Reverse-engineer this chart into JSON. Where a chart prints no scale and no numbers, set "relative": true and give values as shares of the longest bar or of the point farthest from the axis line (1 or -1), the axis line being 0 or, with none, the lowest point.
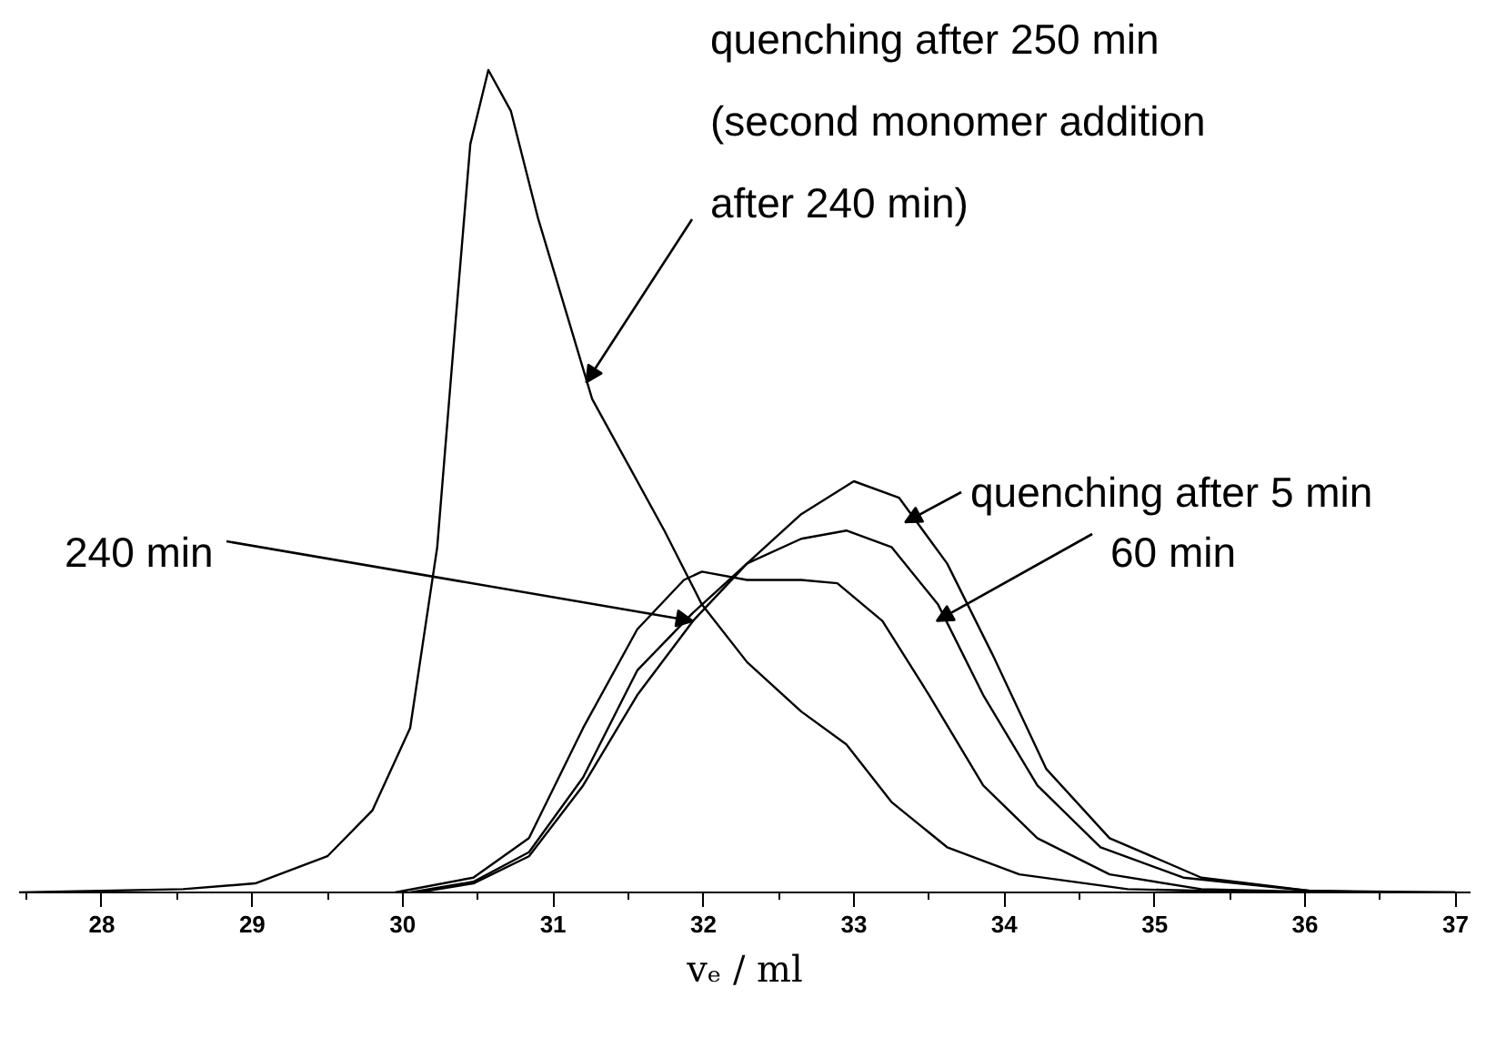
{
  "chart_data": {
    "type": "line",
    "relative": true,
    "xlabel": "vₑ / ml",
    "xlim": [
      27.45,
      37.1
    ],
    "xticks": [
      28,
      29,
      30,
      31,
      32,
      33,
      34,
      35,
      36,
      37
    ],
    "grid": false,
    "tick_labels": "x",
    "marker": "none",
    "line_style": "solid",
    "series": [
      {
        "color": "#000000",
        "x": [
          27.45,
          28.54,
          29.02,
          29.5,
          29.8,
          30.05,
          30.23,
          30.35,
          30.45,
          30.57,
          30.72,
          30.9,
          31.08,
          31.26,
          31.5,
          31.74,
          31.99,
          32.29,
          32.65,
          32.95,
          33.25,
          33.62,
          34.1,
          34.82,
          35.79,
          37
        ],
        "values": [
          0,
          0.004,
          0.011,
          0.044,
          0.1,
          0.2,
          0.42,
          0.69,
          0.91,
          1.0,
          0.95,
          0.82,
          0.71,
          0.6,
          0.52,
          0.44,
          0.35,
          0.28,
          0.22,
          0.18,
          0.11,
          0.055,
          0.022,
          0.004,
          0,
          0
        ]
      },
      {
        "color": "#000000",
        "x": [
          30.1,
          30.47,
          30.84,
          31.2,
          31.56,
          31.93,
          32.29,
          32.65,
          33.0,
          33.3,
          33.62,
          33.92,
          34.28,
          34.7,
          35.31,
          36.03,
          37
        ],
        "values": [
          0,
          0.011,
          0.044,
          0.13,
          0.24,
          0.33,
          0.4,
          0.46,
          0.5,
          0.48,
          0.4,
          0.29,
          0.15,
          0.066,
          0.018,
          0.002,
          0
        ]
      },
      {
        "color": "#000000",
        "x": [
          30.05,
          30.47,
          30.84,
          31.2,
          31.56,
          31.93,
          32.29,
          32.65,
          32.95,
          33.25,
          33.56,
          33.86,
          34.22,
          34.64,
          35.19,
          36.03,
          36.6
        ],
        "values": [
          0,
          0.013,
          0.049,
          0.14,
          0.27,
          0.34,
          0.4,
          0.43,
          0.44,
          0.42,
          0.35,
          0.24,
          0.13,
          0.055,
          0.018,
          0.002,
          0
        ]
      },
      {
        "color": "#000000",
        "x": [
          29.95,
          30.47,
          30.84,
          31.2,
          31.56,
          31.87,
          31.99,
          32.29,
          32.65,
          32.89,
          33.19,
          33.5,
          33.86,
          34.22,
          34.7,
          35.31,
          36.2
        ],
        "values": [
          0,
          0.018,
          0.066,
          0.2,
          0.32,
          0.38,
          0.39,
          0.38,
          0.38,
          0.376,
          0.33,
          0.24,
          0.13,
          0.066,
          0.022,
          0.004,
          0
        ]
      }
    ],
    "annotations": [
      "quenching after 250 min",
      "(second monomer addition",
      {
        "text": "after 240 min)",
        "x": 31.22,
        "y": 0.62
      },
      {
        "text": "quenching after 5 min",
        "x": 33.34,
        "y": 0.45
      },
      {
        "text": "60 min",
        "x": 33.55,
        "y": 0.33
      },
      {
        "text": "240 min",
        "x": 31.93,
        "y": 0.33
      }
    ]
  }
}
